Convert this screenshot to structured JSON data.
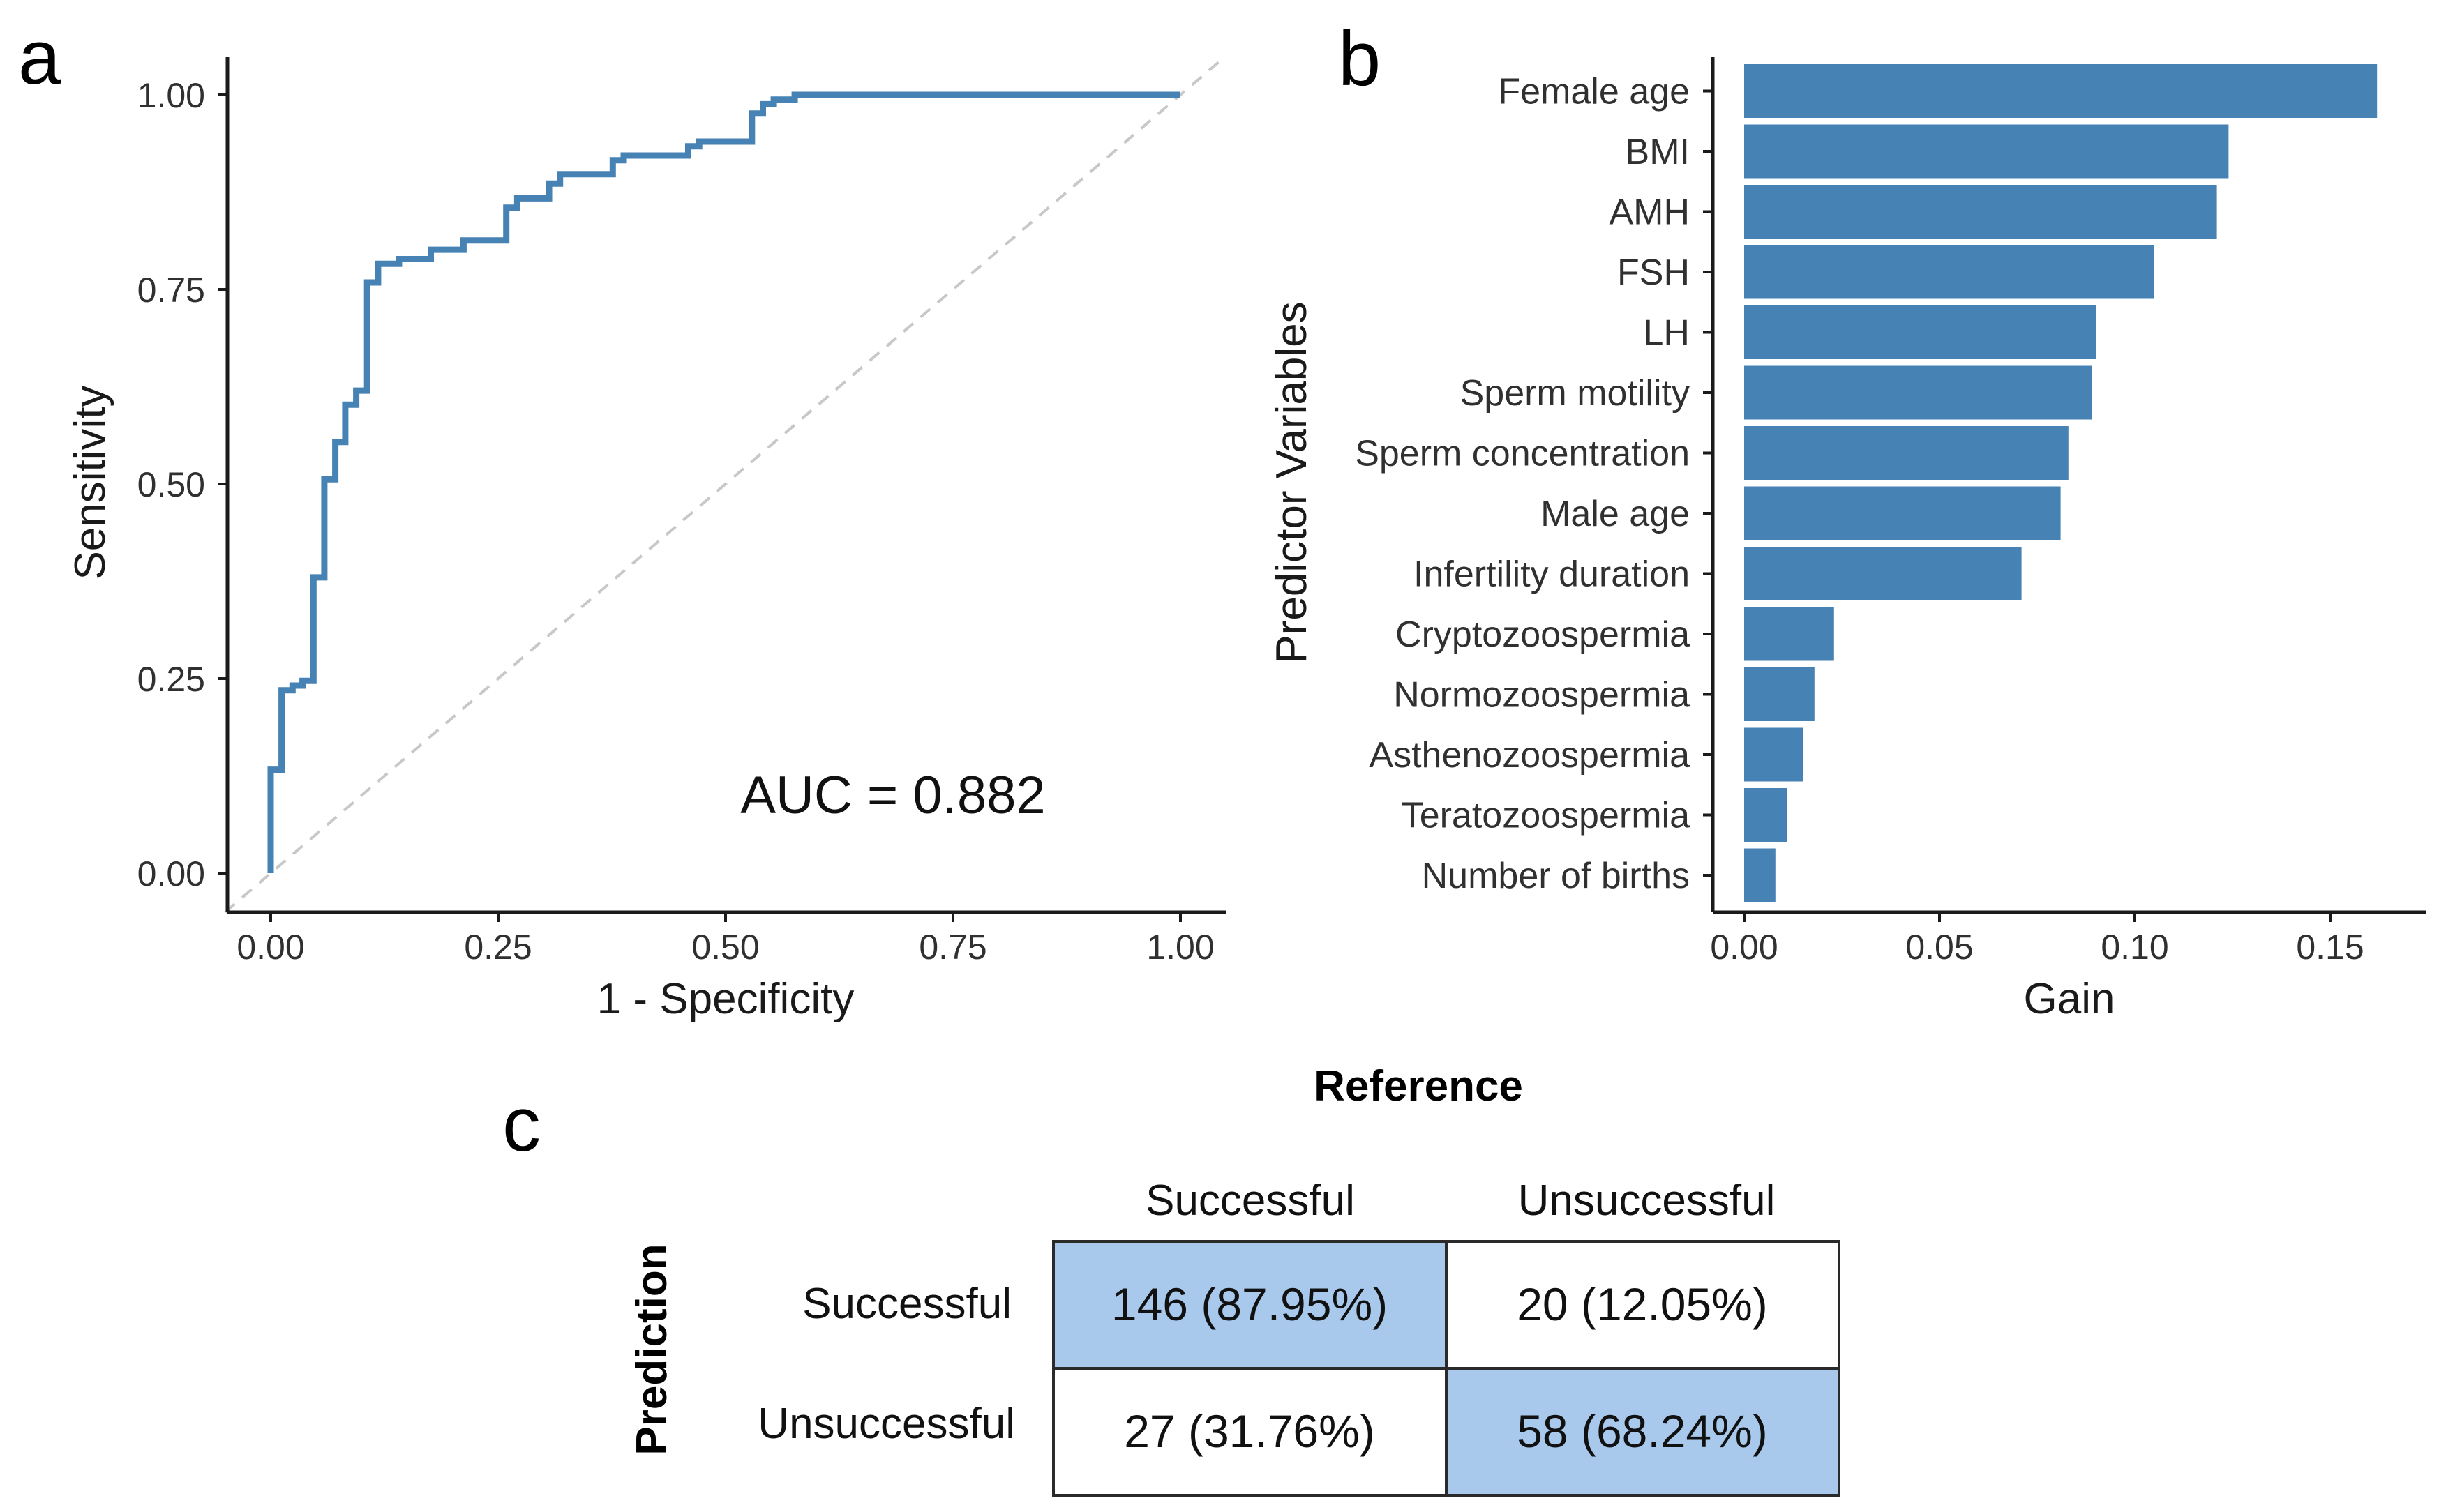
{
  "panels": {
    "a": {
      "letter": "a"
    },
    "b": {
      "letter": "b"
    },
    "c": {
      "letter": "c"
    }
  },
  "chart_data": [
    {
      "type": "line",
      "panel": "a",
      "title": "",
      "xlabel": "1 - Specificity",
      "ylabel": "Sensitivity",
      "xlim": [
        0,
        1
      ],
      "ylim": [
        0,
        1
      ],
      "xticks": [
        "0.00",
        "0.25",
        "0.50",
        "0.75",
        "1.00"
      ],
      "yticks": [
        "0.00",
        "0.25",
        "0.50",
        "0.75",
        "1.00"
      ],
      "annotation": "AUC = 0.882",
      "line_color": "#4682b4",
      "reference_color": "#c8c8c8",
      "reference_line": {
        "x": [
          0,
          1
        ],
        "y": [
          0,
          1
        ]
      },
      "series": [
        {
          "name": "ROC",
          "x": [
            0,
            0,
            0.012,
            0.012,
            0.024,
            0.024,
            0.035,
            0.035,
            0.047,
            0.047,
            0.059,
            0.059,
            0.071,
            0.071,
            0.082,
            0.082,
            0.094,
            0.094,
            0.106,
            0.106,
            0.118,
            0.118,
            0.141,
            0.141,
            0.176,
            0.176,
            0.212,
            0.212,
            0.259,
            0.259,
            0.271,
            0.271,
            0.306,
            0.306,
            0.318,
            0.318,
            0.376,
            0.376,
            0.388,
            0.388,
            0.459,
            0.459,
            0.471,
            0.471,
            0.529,
            0.529,
            0.541,
            0.541,
            0.553,
            0.553,
            0.576,
            0.576,
            1.0
          ],
          "y": [
            0,
            0.133,
            0.133,
            0.235,
            0.235,
            0.241,
            0.241,
            0.247,
            0.247,
            0.38,
            0.38,
            0.506,
            0.506,
            0.554,
            0.554,
            0.602,
            0.602,
            0.62,
            0.62,
            0.759,
            0.759,
            0.783,
            0.783,
            0.789,
            0.789,
            0.801,
            0.801,
            0.813,
            0.813,
            0.855,
            0.855,
            0.867,
            0.867,
            0.886,
            0.886,
            0.898,
            0.898,
            0.916,
            0.916,
            0.922,
            0.922,
            0.934,
            0.934,
            0.94,
            0.94,
            0.976,
            0.976,
            0.988,
            0.988,
            0.994,
            0.994,
            1.0,
            1.0
          ]
        }
      ]
    },
    {
      "type": "bar",
      "panel": "b",
      "orientation": "horizontal",
      "title": "",
      "xlabel": "Gain",
      "ylabel": "Predictor Variables",
      "xlim": [
        0,
        0.17
      ],
      "xticks": [
        "0.00",
        "0.05",
        "0.10",
        "0.15"
      ],
      "bar_color": "#4682b4",
      "categories": [
        "Female age",
        "BMI",
        "AMH",
        "FSH",
        "LH",
        "Sperm motility",
        "Sperm concentration",
        "Male age",
        "Infertility duration",
        "Cryptozoospermia",
        "Normozoospermia",
        "Asthenozoospermia",
        "Teratozoospermia",
        "Number of births"
      ],
      "values": [
        0.162,
        0.124,
        0.121,
        0.105,
        0.09,
        0.089,
        0.083,
        0.081,
        0.071,
        0.023,
        0.018,
        0.015,
        0.011,
        0.008
      ]
    },
    {
      "type": "table",
      "panel": "c",
      "column_group_label": "Reference",
      "row_group_label": "Prediction",
      "columns": [
        "Successful",
        "Unsuccessful"
      ],
      "rows": [
        "Successful",
        "Unsuccessful"
      ],
      "cells": [
        [
          "146 (87.95%)",
          "20 (12.05%)"
        ],
        [
          "27 (31.76%)",
          "58 (68.24%)"
        ]
      ],
      "highlight_color": "#a8c9ec"
    }
  ]
}
